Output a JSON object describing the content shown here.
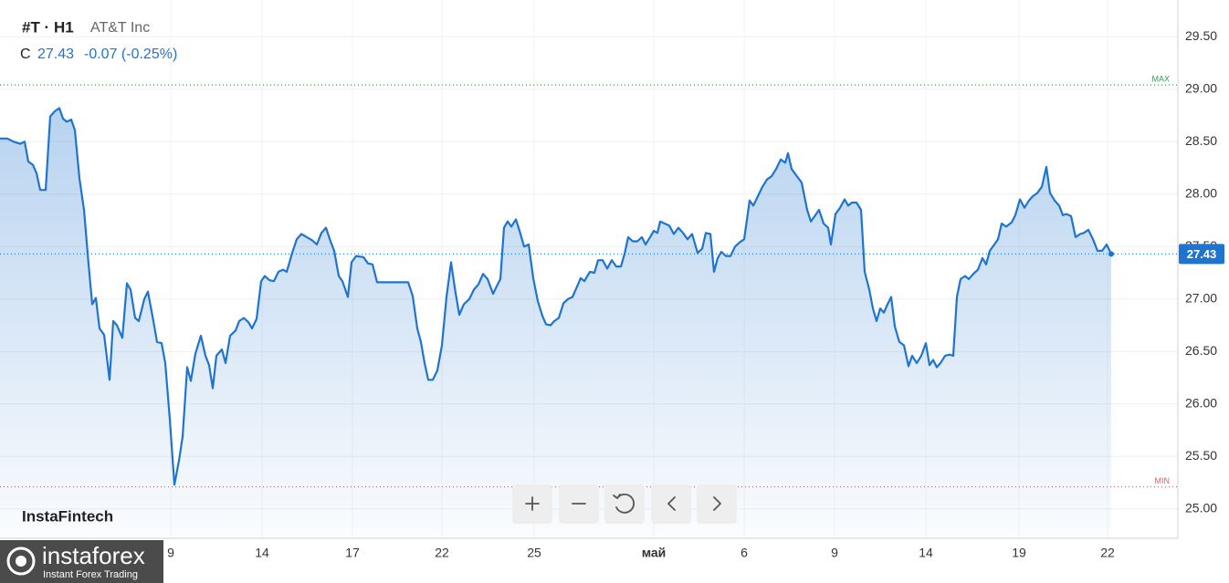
{
  "header": {
    "symbol": "#T · H1",
    "name": "AT&T Inc",
    "close_label": "C",
    "change": "-0.07 (-0.25%)"
  },
  "watermark": "InstaFintech",
  "logo": {
    "name": "instaforex",
    "tagline": "Instant Forex Trading"
  },
  "chart_data": {
    "type": "area",
    "color": "#1f74cf",
    "grid": true,
    "x": [
      0,
      0.8,
      1.5,
      2.2,
      2.7,
      3.1,
      3.6,
      4.0,
      4.4,
      5.0,
      5.5,
      6.0,
      6.5,
      6.9,
      7.3,
      7.8,
      8.2,
      8.7,
      9.2,
      9.7,
      10.1,
      10.5,
      10.9,
      11.4,
      12.0,
      12.4,
      12.8,
      13.4,
      13.9,
      14.3,
      14.8,
      15.2,
      15.8,
      16.2,
      16.8,
      17.2,
      17.7,
      18.1,
      18.6,
      19.1,
      19.6,
      20.0,
      20.5,
      20.9,
      21.4,
      22.0,
      22.5,
      22.9,
      23.3,
      23.7,
      24.3,
      24.7,
      25.2,
      25.8,
      26.2,
      26.7,
      27.2,
      27.6,
      28.1,
      28.6,
      29.0,
      29.5,
      30.0,
      30.5,
      31.0,
      31.4,
      32.0,
      32.5,
      33.0,
      33.6,
      34.2,
      34.7,
      35.2,
      35.7,
      36.2,
      36.6,
      37.1,
      37.5,
      38.1,
      38.5,
      39.0,
      39.8,
      40.3,
      40.8,
      41.3,
      44.7,
      45.2,
      45.7,
      46.1,
      46.5,
      46.9,
      47.4,
      47.9,
      48.4,
      48.9,
      49.4,
      49.8,
      50.3,
      50.8,
      51.4,
      51.9,
      52.4,
      52.9,
      53.4,
      54.0,
      54.5,
      54.8,
      55.2,
      55.6,
      56.0,
      56.5,
      56.9,
      57.4,
      57.9,
      58.4,
      58.9,
      59.4,
      59.8,
      60.3,
      60.7,
      61.2,
      61.7,
      62.2,
      62.7,
      63.1,
      63.6,
      64.0,
      64.6,
      65.1,
      65.5,
      66.0,
      66.5,
      67.0,
      67.5,
      68.0,
      68.4,
      68.8,
      69.3,
      69.8,
      70.3,
      70.7,
      71.2,
      71.6,
      72.0,
      72.3,
      72.8,
      73.3,
      73.8,
      74.3,
      74.8,
      75.3,
      75.8,
      76.4,
      76.9,
      77.3,
      77.8,
      78.2,
      78.6,
      79.0,
      79.5,
      80.0,
      80.5,
      81.0,
      81.5,
      82.1,
      82.5,
      83.0,
      83.5,
      84.0,
      84.5,
      85.0,
      85.5,
      86.0,
      86.3,
      86.7,
      87.2,
      87.8,
      88.4,
      88.8,
      89.3,
      89.7,
      90.2,
      90.7,
      91.0,
      91.5,
      92.0,
      92.5,
      92.9,
      93.3,
      93.8,
      94.3,
      94.7,
      95.2,
      95.6,
      96.0,
      96.4,
      96.8,
      97.2,
      97.6,
      98.0,
      98.5,
      99.0,
      99.5,
      99.9,
      100.4,
      100.9,
      101.4,
      101.8,
      102.2,
      102.6,
      103.0,
      103.5,
      104.0,
      104.4,
      104.8,
      105.2,
      105.7,
      106.1,
      106.6,
      107.1,
      107.6,
      108.0,
      108.4,
      108.9,
      109.3,
      109.7,
      110.2,
      110.8,
      111.2,
      111.7,
      112.2,
      112.7,
      113.1,
      113.6,
      114.1,
      114.6,
      115.0,
      115.5,
      116.0,
      116.4,
      116.8,
      117.3,
      117.8,
      118.3,
      118.7,
      119.2,
      119.7,
      120.2,
      120.7,
      121.2,
      121.7
    ],
    "values": [
      28.53,
      28.53,
      28.5,
      28.48,
      28.5,
      28.31,
      28.28,
      28.2,
      28.04,
      28.04,
      28.74,
      28.79,
      28.82,
      28.72,
      28.69,
      28.71,
      28.61,
      28.15,
      27.85,
      27.33,
      26.95,
      27.01,
      26.72,
      26.66,
      26.23,
      26.79,
      26.75,
      26.63,
      27.15,
      27.09,
      26.82,
      26.79,
      27.0,
      27.07,
      26.79,
      26.59,
      26.58,
      26.39,
      25.85,
      25.23,
      25.46,
      25.69,
      26.35,
      26.22,
      26.48,
      26.65,
      26.46,
      26.37,
      26.15,
      26.46,
      26.52,
      26.39,
      26.65,
      26.7,
      26.79,
      26.82,
      26.78,
      26.72,
      26.81,
      27.17,
      27.22,
      27.18,
      27.17,
      27.26,
      27.28,
      27.26,
      27.44,
      27.57,
      27.62,
      27.59,
      27.56,
      27.52,
      27.63,
      27.68,
      27.55,
      27.46,
      27.22,
      27.17,
      27.02,
      27.35,
      27.41,
      27.4,
      27.34,
      27.33,
      27.16,
      27.16,
      27.03,
      26.72,
      26.59,
      26.39,
      26.23,
      26.23,
      26.32,
      26.56,
      27.02,
      27.35,
      27.11,
      26.85,
      26.95,
      27.0,
      27.09,
      27.14,
      27.24,
      27.19,
      27.05,
      27.14,
      27.19,
      27.68,
      27.74,
      27.69,
      27.76,
      27.65,
      27.5,
      27.52,
      27.2,
      26.98,
      26.84,
      26.76,
      26.75,
      26.79,
      26.82,
      26.96,
      27.0,
      27.02,
      27.1,
      27.2,
      27.17,
      27.26,
      27.25,
      27.37,
      27.37,
      27.29,
      27.37,
      27.31,
      27.31,
      27.43,
      27.59,
      27.55,
      27.55,
      27.59,
      27.52,
      27.59,
      27.65,
      27.63,
      27.74,
      27.72,
      27.7,
      27.62,
      27.68,
      27.63,
      27.57,
      27.62,
      27.44,
      27.48,
      27.63,
      27.62,
      27.26,
      27.39,
      27.45,
      27.41,
      27.41,
      27.5,
      27.54,
      27.57,
      27.94,
      27.89,
      27.98,
      28.07,
      28.14,
      28.17,
      28.24,
      28.33,
      28.3,
      28.39,
      28.24,
      28.18,
      28.11,
      27.85,
      27.74,
      27.8,
      27.85,
      27.72,
      27.68,
      27.52,
      27.81,
      27.87,
      27.95,
      27.89,
      27.92,
      27.92,
      27.85,
      27.26,
      27.09,
      26.91,
      26.79,
      26.91,
      26.87,
      26.95,
      27.02,
      26.74,
      26.59,
      26.56,
      26.36,
      26.46,
      26.39,
      26.46,
      26.58,
      26.37,
      26.42,
      26.35,
      26.39,
      26.46,
      26.47,
      26.46,
      27.02,
      27.19,
      27.22,
      27.19,
      27.24,
      27.28,
      27.39,
      27.33,
      27.46,
      27.52,
      27.57,
      27.72,
      27.69,
      27.73,
      27.8,
      27.95,
      27.87,
      27.94,
      27.98,
      28.01,
      28.07,
      28.26,
      28.01,
      27.94,
      27.89,
      27.8,
      27.81,
      27.79,
      27.59,
      27.62,
      27.63,
      27.66,
      27.57,
      27.46,
      27.46,
      27.52,
      27.43
    ],
    "xlim": [
      0,
      129
    ],
    "ylim": [
      24.72,
      29.85
    ],
    "xticks": [
      {
        "value": 18.7,
        "label": "9"
      },
      {
        "value": 28.7,
        "label": "14"
      },
      {
        "value": 38.6,
        "label": "17"
      },
      {
        "value": 48.4,
        "label": "22"
      },
      {
        "value": 58.5,
        "label": "25"
      },
      {
        "value": 71.6,
        "label": "май"
      },
      {
        "value": 81.5,
        "label": "6"
      },
      {
        "value": 91.4,
        "label": "9"
      },
      {
        "value": 101.4,
        "label": "14"
      },
      {
        "value": 111.6,
        "label": "19"
      },
      {
        "value": 121.3,
        "label": "22"
      }
    ],
    "yticks": [
      {
        "value": 25,
        "label": "25.00"
      },
      {
        "value": 25.5,
        "label": "25.50"
      },
      {
        "value": 26,
        "label": "26.00"
      },
      {
        "value": 26.5,
        "label": "26.50"
      },
      {
        "value": 27,
        "label": "27.00"
      },
      {
        "value": 27.5,
        "label": "27.50"
      },
      {
        "value": 28,
        "label": "28.00"
      },
      {
        "value": 28.5,
        "label": "28.50"
      },
      {
        "value": 29,
        "label": "29.00"
      },
      {
        "value": 29.5,
        "label": "29.50"
      }
    ],
    "reference_lines": [
      {
        "label": "MAX",
        "value": 29.04,
        "color": "#2f9e5b"
      },
      {
        "label": "MIN",
        "value": 25.21,
        "color": "#e0605e"
      }
    ]
  }
}
